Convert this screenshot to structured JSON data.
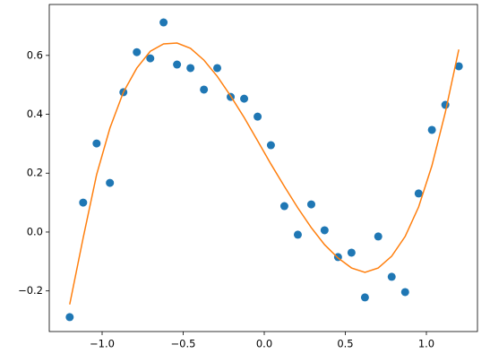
{
  "chart_data": {
    "type": "scatter",
    "x": [
      -1.2,
      -1.117,
      -1.034,
      -0.952,
      -0.869,
      -0.786,
      -0.703,
      -0.621,
      -0.538,
      -0.455,
      -0.372,
      -0.29,
      -0.207,
      -0.124,
      -0.041,
      0.041,
      0.124,
      0.207,
      0.29,
      0.372,
      0.455,
      0.538,
      0.621,
      0.703,
      0.786,
      0.869,
      0.952,
      1.034,
      1.117,
      1.2
    ],
    "series": [
      {
        "type": "scatter",
        "color": "#1f77b4",
        "values": [
          -0.289,
          0.1,
          0.301,
          0.167,
          0.475,
          0.611,
          0.59,
          0.712,
          0.569,
          0.557,
          0.484,
          0.557,
          0.459,
          0.453,
          0.392,
          0.295,
          0.088,
          -0.009,
          0.094,
          0.006,
          -0.085,
          -0.07,
          -0.222,
          -0.015,
          -0.152,
          -0.204,
          0.131,
          0.347,
          0.432,
          0.563
        ]
      },
      {
        "type": "line",
        "color": "#ff7f0e",
        "values": [
          -0.246,
          -0.02,
          0.195,
          0.353,
          0.475,
          0.557,
          0.614,
          0.639,
          0.642,
          0.624,
          0.584,
          0.529,
          0.462,
          0.389,
          0.31,
          0.231,
          0.155,
          0.082,
          0.015,
          -0.043,
          -0.088,
          -0.122,
          -0.137,
          -0.122,
          -0.082,
          -0.015,
          0.085,
          0.225,
          0.407,
          0.62
        ]
      }
    ],
    "xlim": [
      -1.326,
      1.315
    ],
    "ylim": [
      -0.338,
      0.773
    ],
    "xticks": [
      {
        "value": -1.0,
        "label": "−1.0"
      },
      {
        "value": -0.5,
        "label": "−0.5"
      },
      {
        "value": 0,
        "label": "0.0"
      },
      0.5,
      {
        "value": 1.0,
        "label": "1.0"
      }
    ],
    "yticks": [
      {
        "value": -0.2,
        "label": "−0.2"
      },
      {
        "value": 0,
        "label": "0.0"
      },
      0.2,
      0.4,
      0.6
    ]
  }
}
